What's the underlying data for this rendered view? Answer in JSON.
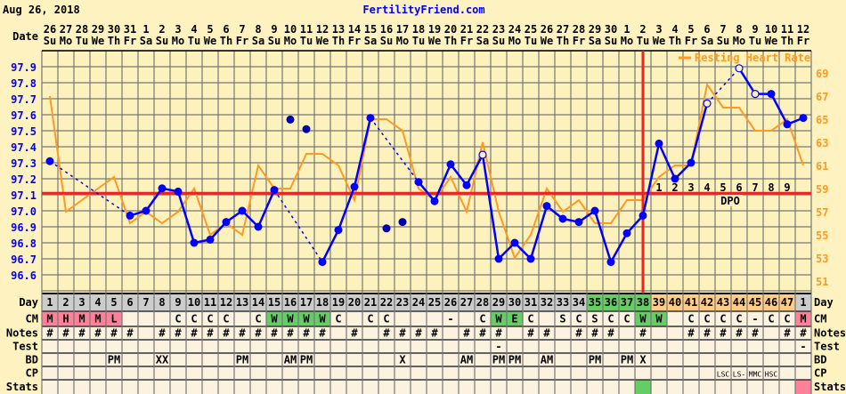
{
  "header": {
    "date": "Aug 26, 2018",
    "site": "FertilityFriend.com"
  },
  "colors": {
    "temp": "#0000ff",
    "discarded": "#0000aa",
    "hr": "#ff9922",
    "coverline": "#ee2222",
    "pink": "#ff8099",
    "green": "#66cc66",
    "orange": "#ffcc88",
    "gray": "#cccccc"
  },
  "labels": {
    "date": "Date",
    "day": "Day",
    "cm": "CM",
    "notes": "Notes",
    "test": "Test",
    "bd": "BD",
    "cp": "CP",
    "stats": "Stats",
    "legend": "Resting Heart Rate",
    "dpo": "DPO"
  },
  "dates": [
    "26",
    "27",
    "28",
    "29",
    "30",
    "31",
    "1",
    "2",
    "3",
    "4",
    "5",
    "6",
    "7",
    "8",
    "9",
    "10",
    "11",
    "12",
    "13",
    "14",
    "15",
    "16",
    "17",
    "18",
    "19",
    "20",
    "21",
    "22",
    "23",
    "24",
    "25",
    "26",
    "27",
    "28",
    "29",
    "30",
    "1",
    "2",
    "3",
    "4",
    "5",
    "6",
    "7",
    "8",
    "9",
    "10",
    "11",
    "12"
  ],
  "weekdays": [
    "Su",
    "Mo",
    "Tu",
    "We",
    "Th",
    "Fr",
    "Sa",
    "Su",
    "Mo",
    "Tu",
    "We",
    "Th",
    "Fr",
    "Sa",
    "Su",
    "Mo",
    "Tu",
    "We",
    "Th",
    "Fr",
    "Sa",
    "Su",
    "Mo",
    "Tu",
    "We",
    "Th",
    "Fr",
    "Sa",
    "Su",
    "Mo",
    "Tu",
    "We",
    "Th",
    "Fr",
    "Sa",
    "Su",
    "Mo",
    "Tu",
    "We",
    "Th",
    "Fr",
    "Sa",
    "Su",
    "Mo",
    "Tu",
    "We",
    "Th",
    "Fr"
  ],
  "days": [
    "1",
    "2",
    "3",
    "4",
    "5",
    "6",
    "7",
    "8",
    "9",
    "10",
    "11",
    "12",
    "13",
    "14",
    "15",
    "16",
    "17",
    "18",
    "19",
    "20",
    "21",
    "22",
    "23",
    "24",
    "25",
    "26",
    "27",
    "28",
    "29",
    "30",
    "31",
    "32",
    "33",
    "34",
    "35",
    "36",
    "37",
    "38",
    "39",
    "40",
    "41",
    "42",
    "43",
    "44",
    "45",
    "46",
    "47",
    "1"
  ],
  "day_phase": [
    "gray",
    "gray",
    "gray",
    "gray",
    "gray",
    "gray",
    "gray",
    "gray",
    "gray",
    "gray",
    "gray",
    "gray",
    "gray",
    "gray",
    "gray",
    "gray",
    "gray",
    "gray",
    "gray",
    "gray",
    "gray",
    "gray",
    "gray",
    "gray",
    "gray",
    "gray",
    "gray",
    "gray",
    "gray",
    "gray",
    "gray",
    "gray",
    "gray",
    "gray",
    "green",
    "green",
    "green",
    "green",
    "orange",
    "orange",
    "orange",
    "orange",
    "orange",
    "orange",
    "orange",
    "orange",
    "orange",
    "gray"
  ],
  "cm": [
    "M",
    "H",
    "M",
    "M",
    "L",
    "",
    "",
    "",
    "C",
    "C",
    "C",
    "C",
    "",
    "C",
    "W",
    "W",
    "W",
    "W",
    "C",
    "",
    "C",
    "C",
    "",
    "",
    "",
    "-",
    "",
    "C",
    "W",
    "E",
    "C",
    "",
    "S",
    "C",
    "S",
    "C",
    "C",
    "W",
    "W",
    "",
    "C",
    "C",
    "C",
    "C",
    "-",
    "C",
    "C",
    "M"
  ],
  "cm_colors": {
    "0": "pink",
    "1": "pink",
    "2": "pink",
    "3": "pink",
    "4": "pink",
    "14": "green",
    "15": "green",
    "16": "green",
    "17": "green",
    "28": "green",
    "29": "green",
    "37": "green",
    "38": "green",
    "47": "pink"
  },
  "notes": [
    "#",
    "#",
    "#",
    "#",
    "#",
    "#",
    "",
    "#",
    "#",
    "#",
    "#",
    "#",
    "#",
    "#",
    "#",
    "#",
    "#",
    "#",
    "",
    "#",
    "",
    "#",
    "#",
    "#",
    "#",
    "",
    "#",
    "#",
    "#",
    "",
    "#",
    "#",
    "",
    "#",
    "#",
    "#",
    "",
    "#",
    "",
    "",
    "#",
    "#",
    "#",
    "#",
    "#",
    "",
    "#",
    "#"
  ],
  "test": {
    "28": "-",
    "47": "-"
  },
  "bd": {
    "4": "PM",
    "7": "XX",
    "12": "PM",
    "15": "AM",
    "16": "PM",
    "22": "X",
    "26": "AM",
    "28": "PM",
    "29": "PM",
    "31": "AM",
    "34": "PM",
    "36": "PM",
    "37": "X"
  },
  "cp": {
    "42": "LSC",
    "43": "LS-",
    "44": "MMC",
    "45": "HSC"
  },
  "stats_colors": {
    "37": "green",
    "47": "pink"
  },
  "dpo_numbers": [
    "1",
    "2",
    "3",
    "4",
    "5",
    "6",
    "7",
    "8",
    "9"
  ],
  "chart_data": {
    "type": "line",
    "temp_axis": {
      "ticks": [
        "97.9",
        "97.8",
        "97.7",
        "97.6",
        "97.5",
        "97.4",
        "97.3",
        "97.2",
        "97.1",
        "97.0",
        "96.9",
        "96.8",
        "96.7",
        "96.6"
      ],
      "range": [
        96.5,
        98.0
      ]
    },
    "hr_axis": {
      "ticks": [
        "69",
        "67",
        "65",
        "63",
        "61",
        "59",
        "57",
        "55",
        "53",
        "51"
      ]
    },
    "coverline": 97.11,
    "ovulation_day": 38,
    "temps": [
      97.31,
      null,
      null,
      null,
      null,
      96.97,
      97.0,
      97.14,
      97.12,
      96.8,
      96.82,
      96.93,
      97.0,
      96.9,
      97.13,
      97.57,
      97.51,
      96.68,
      96.88,
      97.15,
      97.58,
      96.89,
      96.93,
      97.18,
      97.06,
      97.29,
      97.16,
      97.35,
      96.7,
      96.8,
      96.7,
      97.03,
      96.95,
      96.93,
      97.0,
      96.68,
      96.86,
      96.97,
      97.42,
      97.2,
      97.3,
      97.67,
      null,
      97.89,
      97.73,
      97.73,
      97.54,
      97.58
    ],
    "temp_markers": {
      "15": "discarded",
      "16": "discarded",
      "21": "discarded",
      "22": "discarded",
      "27": "open",
      "41": "open",
      "43": "open",
      "44": "open"
    },
    "resting_heart_rate": [
      67,
      57,
      58,
      59,
      60,
      56,
      57,
      56,
      57,
      59,
      55,
      56,
      55,
      61,
      59,
      59,
      62,
      62,
      61,
      58,
      65,
      65,
      64,
      59,
      58,
      60,
      57,
      63,
      57,
      53,
      55,
      59,
      57,
      58,
      56,
      56,
      58,
      58,
      60,
      61,
      61,
      68,
      66,
      66,
      64,
      64,
      65,
      61
    ]
  }
}
